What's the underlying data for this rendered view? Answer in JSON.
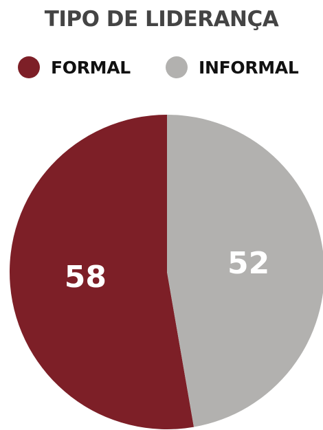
{
  "chart_data": {
    "type": "pie",
    "title": "TIPO DE LIDERANÇA",
    "legend_position": "top",
    "slices": [
      {
        "label": "FORMAL",
        "value": 58,
        "color": "#7d1f27"
      },
      {
        "label": "INFORMAL",
        "value": 52,
        "color": "#b2b1af"
      }
    ]
  }
}
